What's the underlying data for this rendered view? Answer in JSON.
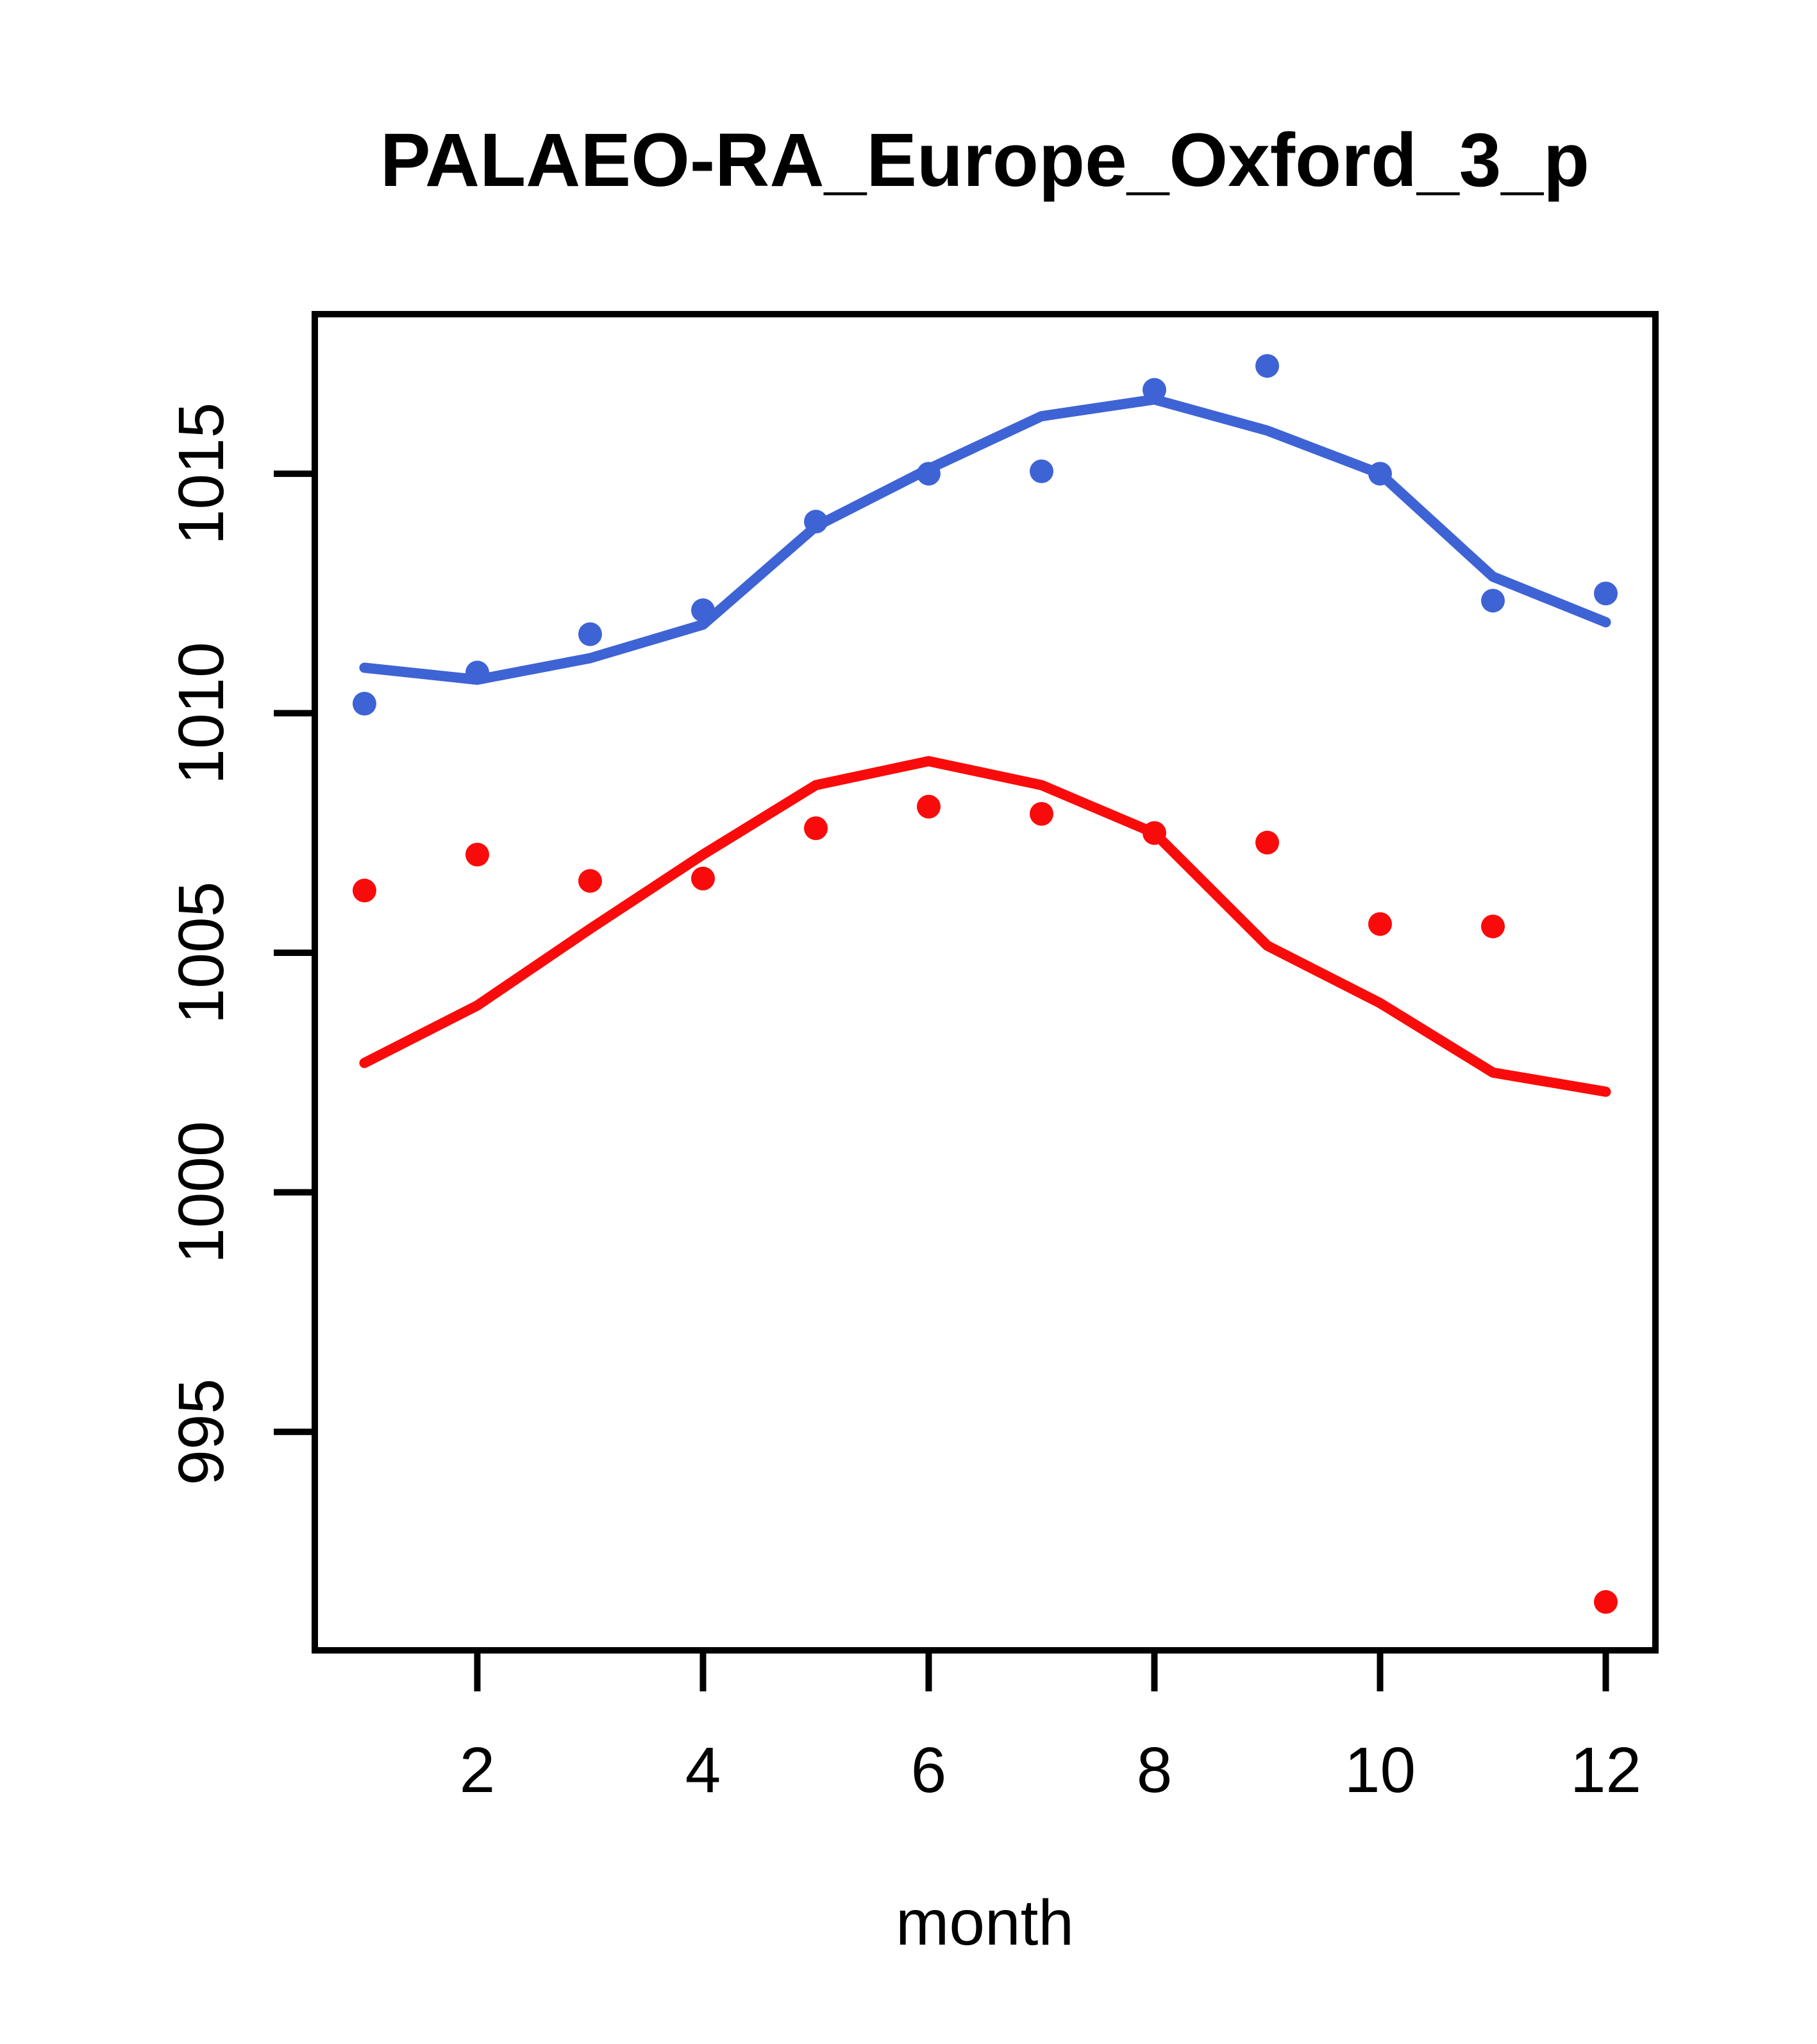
{
  "title": "PALAEO-RA_Europe_Oxford_3_p",
  "chart_data": {
    "type": "scatter",
    "title": "PALAEO-RA_Europe_Oxford_3_p",
    "xlabel": "month",
    "ylabel": "",
    "background_color": "#ffffff",
    "axis_color": "#000000",
    "grid": false,
    "legend": null,
    "x": [
      1,
      2,
      3,
      4,
      5,
      6,
      7,
      8,
      9,
      10,
      11,
      12
    ],
    "xlim": [
      0.56,
      12.44
    ],
    "ylim": [
      990.44,
      1018.33
    ],
    "x_ticks": {
      "values": [
        2,
        4,
        6,
        8,
        10,
        12
      ],
      "labels": [
        "2",
        "4",
        "6",
        "8",
        "10",
        "12"
      ]
    },
    "y_ticks": {
      "values": [
        995,
        1000,
        1005,
        1010,
        1015
      ],
      "labels": [
        "995",
        "1000",
        "1005",
        "1010",
        "1015"
      ]
    },
    "series": [
      {
        "name": "blue-points",
        "style": "points",
        "color": "#3e63d4",
        "values": [
          1010.2,
          1010.85,
          1011.65,
          1012.15,
          1014.0,
          1015.0,
          1015.05,
          1016.75,
          1017.25,
          1015.0,
          1012.35,
          1012.5
        ]
      },
      {
        "name": "blue-line",
        "style": "line",
        "color": "#3e63d4",
        "values": [
          1010.95,
          1010.7,
          1011.15,
          1011.85,
          1013.9,
          1015.1,
          1016.2,
          1016.55,
          1015.9,
          1015.0,
          1012.85,
          1011.9
        ]
      },
      {
        "name": "red-points",
        "style": "points",
        "color": "#fa0b0b",
        "values": [
          1006.3,
          1007.05,
          1006.5,
          1006.55,
          1007.6,
          1008.05,
          1007.9,
          1007.5,
          1007.3,
          1005.6,
          1005.55,
          991.45
        ]
      },
      {
        "name": "red-line",
        "style": "line",
        "color": "#fa0b0b",
        "values": [
          1002.7,
          1003.9,
          1005.5,
          1007.05,
          1008.5,
          1009.0,
          1008.5,
          1007.5,
          1005.15,
          1003.95,
          1002.5,
          1002.1
        ]
      }
    ]
  }
}
